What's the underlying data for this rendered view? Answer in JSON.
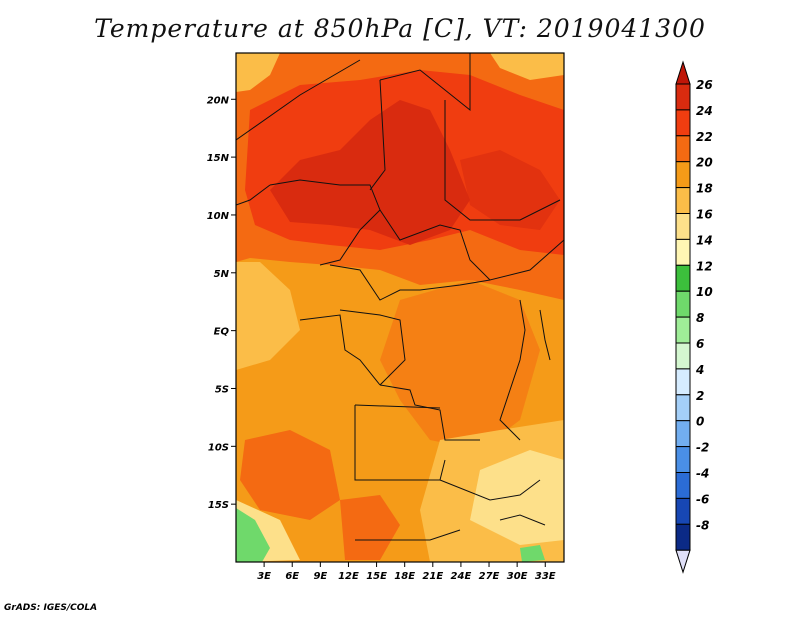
{
  "title": "Temperature at 850hPa [C], VT: 2019041300",
  "footer": "GrADS: IGES/COLA",
  "map": {
    "variable": "Temperature at 850hPa",
    "units": "C",
    "valid_time": "2019041300",
    "lon_range": [
      0,
      35
    ],
    "lat_range": [
      -20,
      24
    ],
    "lat_ticks": [
      {
        "value": 20,
        "label": "20N"
      },
      {
        "value": 15,
        "label": "15N"
      },
      {
        "value": 10,
        "label": "10N"
      },
      {
        "value": 5,
        "label": "5N"
      },
      {
        "value": 0,
        "label": "EQ"
      },
      {
        "value": -5,
        "label": "5S"
      },
      {
        "value": -10,
        "label": "10S"
      },
      {
        "value": -15,
        "label": "15S"
      }
    ],
    "lon_ticks": [
      {
        "value": 3,
        "label": "3E"
      },
      {
        "value": 6,
        "label": "6E"
      },
      {
        "value": 9,
        "label": "9E"
      },
      {
        "value": 12,
        "label": "12E"
      },
      {
        "value": 15,
        "label": "15E"
      },
      {
        "value": 18,
        "label": "18E"
      },
      {
        "value": 21,
        "label": "21E"
      },
      {
        "value": 24,
        "label": "24E"
      },
      {
        "value": 27,
        "label": "27E"
      },
      {
        "value": 30,
        "label": "30E"
      },
      {
        "value": 33,
        "label": "33E"
      }
    ]
  },
  "colorbar": {
    "levels": [
      {
        "label": "26",
        "color": "#d92b0f"
      },
      {
        "label": "24",
        "color": "#f03d10"
      },
      {
        "label": "22",
        "color": "#f46a12"
      },
      {
        "label": "20",
        "color": "#f59b18"
      },
      {
        "label": "18",
        "color": "#fbbd48"
      },
      {
        "label": "16",
        "color": "#fde08a"
      },
      {
        "label": "14",
        "color": "#fff6b4"
      },
      {
        "label": "12",
        "color": "#3cbf3c"
      },
      {
        "label": "10",
        "color": "#6fd96b"
      },
      {
        "label": "8",
        "color": "#9fed98"
      },
      {
        "label": "6",
        "color": "#d4f7d0"
      },
      {
        "label": "4",
        "color": "#d6ecff"
      },
      {
        "label": "2",
        "color": "#a4cff8"
      },
      {
        "label": "0",
        "color": "#72aef0"
      },
      {
        "label": "-2",
        "color": "#4a8fe6"
      },
      {
        "label": "-4",
        "color": "#2b6cd6"
      },
      {
        "label": "-6",
        "color": "#1747b4"
      },
      {
        "label": "-8",
        "color": "#0b2a86"
      }
    ],
    "top_arrow_color": "#c01608",
    "bottom_arrow_color": "#e0e0f8"
  }
}
